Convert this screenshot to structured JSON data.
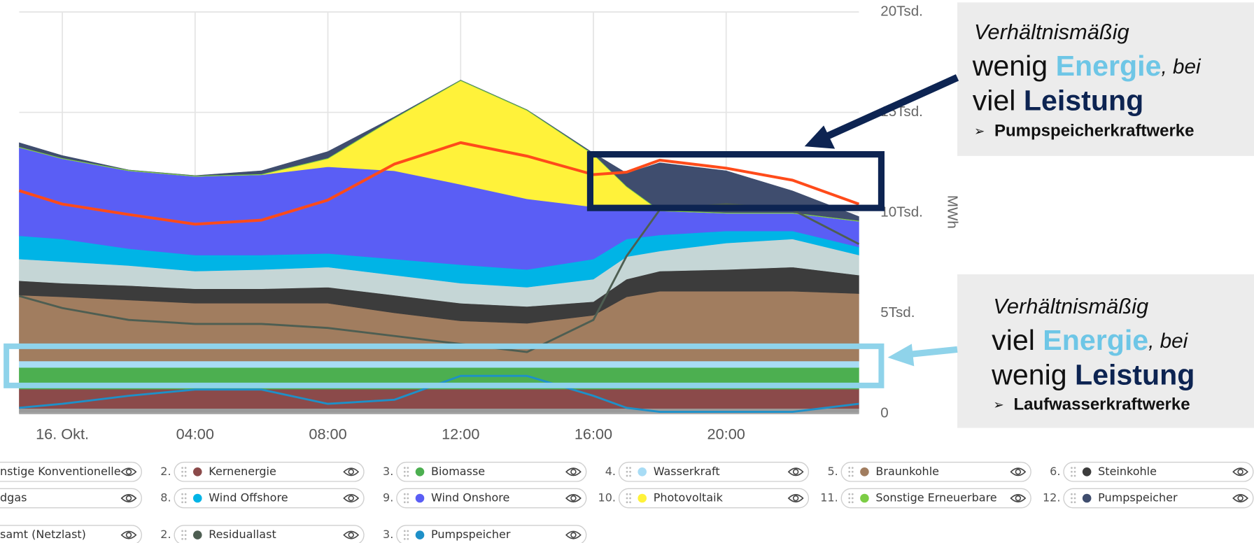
{
  "chart_data": {
    "type": "area",
    "x": [
      -1.3,
      0,
      2,
      4,
      6,
      8,
      10,
      12,
      14,
      16,
      17,
      18,
      20,
      22,
      24
    ],
    "xlim": [
      -1.3,
      24
    ],
    "xticks": [
      {
        "value": 0,
        "label": "16. Okt."
      },
      {
        "value": 4,
        "label": "04:00"
      },
      {
        "value": 8,
        "label": "08:00"
      },
      {
        "value": 12,
        "label": "12:00"
      },
      {
        "value": 16,
        "label": "16:00"
      },
      {
        "value": 20,
        "label": "20:00"
      }
    ],
    "ylim": [
      0,
      20000
    ],
    "yticks": [
      0,
      {
        "value": 5000,
        "label": "5Tsd."
      },
      {
        "value": 10000,
        "label": "10Tsd."
      },
      {
        "value": 15000,
        "label": "15Tsd."
      },
      {
        "value": 20000,
        "label": "20Tsd."
      }
    ],
    "ylabel": "MWh",
    "grid": true,
    "series": [
      {
        "name": "nstige Konventionelle",
        "color": "#9a9a9a",
        "values": [
          250,
          250,
          250,
          250,
          250,
          250,
          250,
          250,
          250,
          250,
          250,
          250,
          250,
          250,
          250
        ]
      },
      {
        "legend_number": "2.",
        "name": "Kernenergie",
        "color": "#8b4a4a",
        "values": [
          960,
          960,
          960,
          960,
          960,
          960,
          960,
          960,
          960,
          960,
          960,
          960,
          960,
          960,
          960
        ]
      },
      {
        "legend_number": "3.",
        "name": "Biomasse",
        "color": "#4caf50",
        "values": [
          1080,
          1080,
          1080,
          1080,
          1080,
          1080,
          1080,
          1080,
          1080,
          1080,
          1080,
          1080,
          1080,
          1080,
          1080
        ]
      },
      {
        "legend_number": "4.",
        "name": "Wasserkraft",
        "color": "#a8dcf5",
        "values": [
          320,
          320,
          320,
          320,
          320,
          320,
          320,
          320,
          320,
          320,
          320,
          320,
          320,
          320,
          320
        ]
      },
      {
        "legend_number": "5.",
        "name": "Braunkohle",
        "color": "#a17d5f",
        "values": [
          3280,
          3200,
          3040,
          2880,
          2880,
          2880,
          2400,
          2000,
          1880,
          2280,
          3200,
          3480,
          3480,
          3480,
          3360
        ]
      },
      {
        "legend_number": "6.",
        "name": "Steinkohle",
        "color": "#3c3c3c",
        "values": [
          720,
          680,
          720,
          720,
          720,
          800,
          880,
          880,
          840,
          680,
          880,
          1000,
          1080,
          1200,
          920
        ]
      },
      {
        "name": "dgas",
        "color": "#c5d6d6",
        "values": [
          1080,
          1080,
          1000,
          880,
          960,
          1000,
          1000,
          1000,
          960,
          1120,
          1120,
          1000,
          1320,
          1400,
          1000
        ]
      },
      {
        "legend_number": "8.",
        "name": "Wind Offshore",
        "color": "#00b4e6",
        "values": [
          1160,
          1120,
          840,
          800,
          720,
          680,
          800,
          920,
          880,
          1000,
          880,
          800,
          600,
          400,
          400
        ]
      },
      {
        "legend_number": "9.",
        "name": "Wind Onshore",
        "color": "#5a5ef5",
        "values": [
          4400,
          4000,
          3880,
          3920,
          4000,
          4320,
          4400,
          4000,
          3520,
          2600,
          1520,
          1200,
          880,
          880,
          1280
        ]
      },
      {
        "legend_number": "10.",
        "name": "Photovoltaik",
        "color": "#fff23a",
        "values": [
          0,
          0,
          0,
          0,
          0,
          400,
          2600,
          5160,
          4400,
          2600,
          1080,
          0,
          0,
          0,
          0
        ]
      },
      {
        "legend_number": "11.",
        "name": "Sonstige Erneuerbare",
        "color": "#7ccd45",
        "values": [
          40,
          40,
          40,
          40,
          40,
          40,
          40,
          40,
          40,
          40,
          40,
          40,
          40,
          40,
          40
        ]
      },
      {
        "legend_number": "12.",
        "name": "Pumpspeicher",
        "color": "#3f4d6e",
        "values": [
          200,
          120,
          0,
          0,
          160,
          320,
          40,
          0,
          0,
          40,
          640,
          2360,
          2080,
          1080,
          200
        ]
      }
    ],
    "lines": [
      {
        "name": "samt (Netzlast)",
        "color": "#ff4b1a",
        "width": 3.5,
        "values": [
          11100,
          10430,
          9910,
          9430,
          9630,
          10630,
          12420,
          13490,
          12820,
          11900,
          12020,
          12620,
          12220,
          11620,
          10430
        ]
      },
      {
        "legend_number": "2.",
        "name": "Residuallast",
        "color": "#4e5e52",
        "width": 2.5,
        "values": [
          5850,
          5250,
          4660,
          4460,
          4460,
          4260,
          3860,
          3460,
          3060,
          4660,
          7840,
          10150,
          10430,
          10150,
          8440
        ]
      },
      {
        "legend_number": "3.",
        "name": "Pumpspeicher",
        "color": "#1e90c8",
        "width": 2.5,
        "values": [
          280,
          480,
          880,
          1190,
          1190,
          480,
          680,
          1870,
          1870,
          880,
          280,
          80,
          80,
          80,
          480
        ]
      }
    ]
  },
  "annotations": [
    {
      "intro": "Verhältnismäßig",
      "word1": "wenig",
      "energy": "Energie",
      "bei": ", bei",
      "word2": "viel",
      "power": "Leistung",
      "bullet": "➢",
      "target": "Pumpspeicherkraftwerke"
    },
    {
      "intro": "Verhältnismäßig",
      "word1": "viel",
      "energy": "Energie",
      "bei": ", bei",
      "word2": "wenig",
      "power": "Leistung",
      "bullet": "➢",
      "target": "Laufwasserkraftwerke"
    }
  ]
}
